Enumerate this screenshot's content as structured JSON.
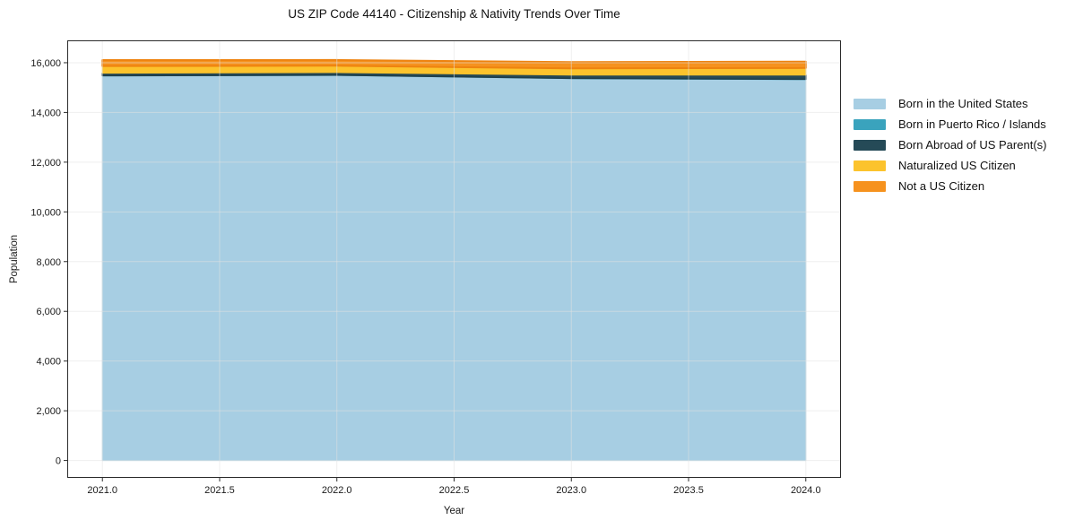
{
  "chart_data": {
    "type": "area",
    "stacked": true,
    "title": "US ZIP Code 44140 - Citizenship & Nativity Trends Over Time",
    "xlabel": "Year",
    "ylabel": "Population",
    "x": [
      2021,
      2022,
      2023,
      2024
    ],
    "series": [
      {
        "name": "Born in the United States",
        "color": "#a7cee3",
        "edge": "#a7cee3",
        "edge_width": 1,
        "values": [
          15470,
          15490,
          15360,
          15320
        ]
      },
      {
        "name": "Born in Puerto Rico / Islands",
        "color": "#3aa3bd",
        "edge": "#3aa3bd",
        "edge_width": 1,
        "values": [
          10,
          10,
          10,
          15
        ]
      },
      {
        "name": "Born Abroad of US Parent(s)",
        "color": "#254a57",
        "edge": "#1f3e4a",
        "edge_width": 1.5,
        "values": [
          100,
          105,
          130,
          165
        ]
      },
      {
        "name": "Naturalized US Citizen",
        "color": "#fcc32d",
        "edge": "#fcc32d",
        "edge_width": 1,
        "values": [
          290,
          275,
          270,
          290
        ]
      },
      {
        "name": "Not a US Citizen",
        "color": "#f6921e",
        "edge": "#ee830f",
        "edge_width": 2,
        "values": [
          235,
          230,
          255,
          255
        ]
      }
    ],
    "x_ticks": [
      2021.0,
      2021.5,
      2022.0,
      2022.5,
      2023.0,
      2023.5,
      2024.0
    ],
    "y_ticks": [
      0,
      2000,
      4000,
      6000,
      8000,
      10000,
      12000,
      14000,
      16000
    ],
    "xlim": [
      2020.85,
      2024.15
    ],
    "ylim": [
      -700,
      16900
    ],
    "grid": true,
    "legend_position": "right",
    "frame_color": "#2b2b2b",
    "grid_color": "rgba(225,225,225,0.55)",
    "background": "#ffffff"
  }
}
